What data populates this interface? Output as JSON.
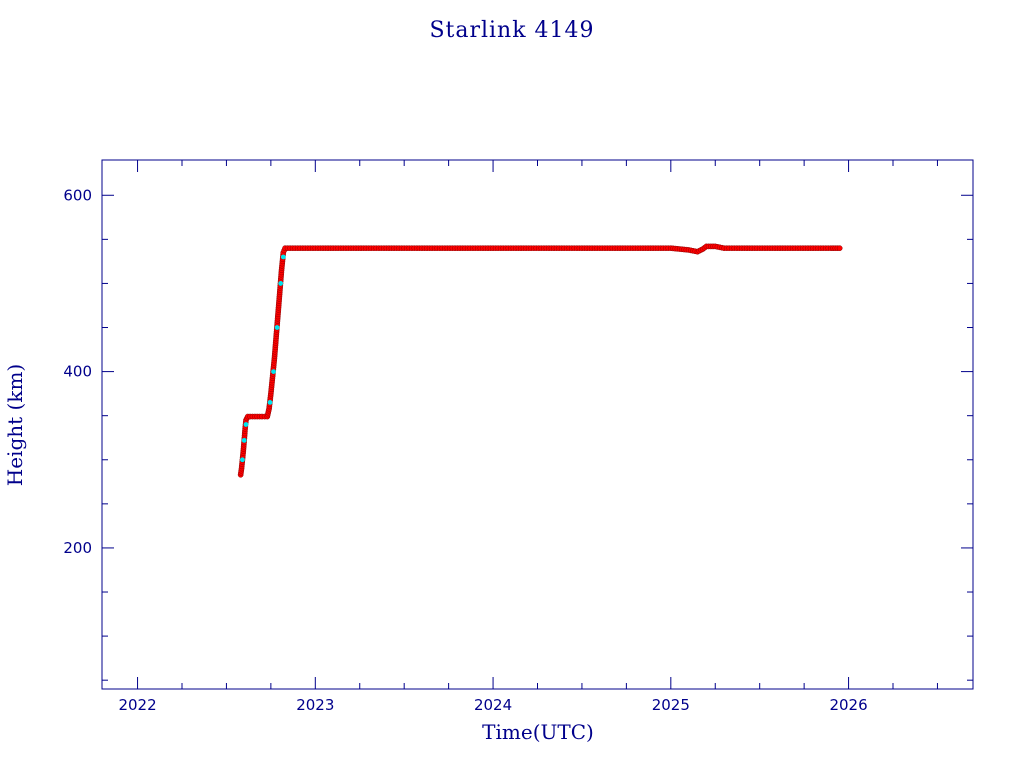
{
  "chart_data": {
    "type": "scatter",
    "title": "Starlink 4149",
    "xlabel": "Time(UTC)",
    "ylabel": "Height (km)",
    "xlim": [
      2021.8,
      2026.7
    ],
    "ylim": [
      40,
      640
    ],
    "xticks": [
      {
        "value": 2022,
        "label": "2022"
      },
      {
        "value": 2023,
        "label": "2023"
      },
      {
        "value": 2024,
        "label": "2024"
      },
      {
        "value": 2025,
        "label": "2025"
      },
      {
        "value": 2026,
        "label": "2026"
      }
    ],
    "yticks": [
      {
        "value": 200,
        "label": "200"
      },
      {
        "value": 400,
        "label": "400"
      },
      {
        "value": 600,
        "label": "600"
      }
    ],
    "grid": false,
    "colors": {
      "axis": "#00008b",
      "primary": "#ff0000",
      "primary_edge": "#8b0000",
      "secondary": "#00e5ee"
    },
    "series": [
      {
        "color": "#ff0000",
        "points": [
          [
            2022.58,
            283
          ],
          [
            2022.585,
            290
          ],
          [
            2022.59,
            300
          ],
          [
            2022.595,
            310
          ],
          [
            2022.6,
            322
          ],
          [
            2022.605,
            335
          ],
          [
            2022.61,
            345
          ],
          [
            2022.62,
            349
          ],
          [
            2022.66,
            349
          ],
          [
            2022.7,
            349
          ],
          [
            2022.73,
            349
          ],
          [
            2022.74,
            358
          ],
          [
            2022.75,
            375
          ],
          [
            2022.76,
            395
          ],
          [
            2022.77,
            415
          ],
          [
            2022.78,
            440
          ],
          [
            2022.79,
            465
          ],
          [
            2022.8,
            490
          ],
          [
            2022.81,
            515
          ],
          [
            2022.82,
            535
          ],
          [
            2022.83,
            540
          ],
          [
            2023.0,
            540
          ],
          [
            2023.2,
            540
          ],
          [
            2023.4,
            540
          ],
          [
            2023.6,
            540
          ],
          [
            2023.8,
            540
          ],
          [
            2024.0,
            540
          ],
          [
            2024.2,
            540
          ],
          [
            2024.4,
            540
          ],
          [
            2024.6,
            540
          ],
          [
            2024.8,
            540
          ],
          [
            2025.0,
            540
          ],
          [
            2025.1,
            538
          ],
          [
            2025.15,
            536
          ],
          [
            2025.18,
            539
          ],
          [
            2025.2,
            542
          ],
          [
            2025.25,
            542
          ],
          [
            2025.3,
            540
          ],
          [
            2025.5,
            540
          ],
          [
            2025.7,
            540
          ],
          [
            2025.9,
            540
          ],
          [
            2025.95,
            540
          ]
        ]
      },
      {
        "color": "#00e5ee",
        "points": [
          [
            2022.59,
            300
          ],
          [
            2022.6,
            322
          ],
          [
            2022.61,
            340
          ],
          [
            2022.745,
            365
          ],
          [
            2022.765,
            400
          ],
          [
            2022.785,
            450
          ],
          [
            2022.805,
            500
          ],
          [
            2022.82,
            530
          ]
        ]
      }
    ]
  }
}
